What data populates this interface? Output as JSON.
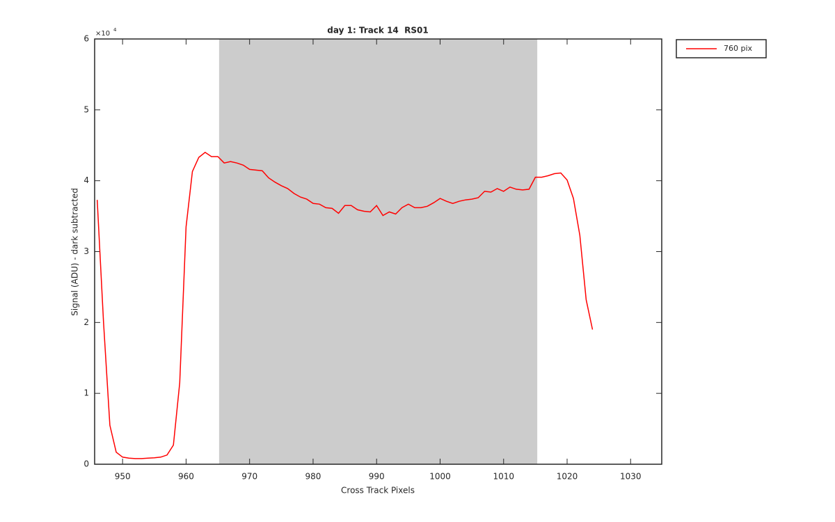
{
  "chart_data": {
    "type": "line",
    "title": "day 1: Track 14  RS01",
    "xlabel": "Cross Track Pixels",
    "ylabel": "Signal (ADU) - dark subtracted",
    "y_exponent_base": "×10",
    "y_exponent": "4",
    "xlim": [
      945.6,
      1034.9
    ],
    "ylim": [
      0,
      60000
    ],
    "xticks": [
      950,
      960,
      970,
      980,
      990,
      1000,
      1010,
      1020,
      1030
    ],
    "yticks": [
      0,
      {
        "value": 10000,
        "label": "1"
      },
      {
        "value": 20000,
        "label": "2"
      },
      {
        "value": 30000,
        "label": "3"
      },
      {
        "value": 40000,
        "label": "4"
      },
      {
        "value": 50000,
        "label": "5"
      },
      {
        "value": 60000,
        "label": "6"
      }
    ],
    "shaded_region": [
      965.2,
      1015.3
    ],
    "shaded_color": "#cccccc",
    "legend": "upper right outside",
    "x": [
      946,
      947,
      948,
      949,
      950,
      951,
      952,
      953,
      954,
      955,
      956,
      957,
      958,
      959,
      960,
      961,
      962,
      963,
      964,
      965,
      966,
      967,
      968,
      969,
      970,
      971,
      972,
      973,
      974,
      975,
      976,
      977,
      978,
      979,
      980,
      981,
      982,
      983,
      984,
      985,
      986,
      987,
      988,
      989,
      990,
      991,
      992,
      993,
      994,
      995,
      996,
      997,
      998,
      999,
      1000,
      1001,
      1002,
      1003,
      1004,
      1005,
      1006,
      1007,
      1008,
      1009,
      1010,
      1011,
      1012,
      1013,
      1014,
      1015,
      1016,
      1017,
      1018,
      1019,
      1020,
      1021,
      1022,
      1023,
      1024
    ],
    "series": [
      {
        "name": "760 pix",
        "color": "#ff0000",
        "values": [
          37300,
          20000,
          5500,
          1700,
          1000,
          850,
          800,
          800,
          850,
          900,
          1000,
          1300,
          2700,
          11500,
          33500,
          41300,
          43300,
          44000,
          43400,
          43400,
          42500,
          42700,
          42500,
          42200,
          41600,
          41500,
          41400,
          40400,
          39800,
          39300,
          38900,
          38200,
          37700,
          37400,
          36800,
          36700,
          36200,
          36100,
          35400,
          36500,
          36500,
          35900,
          35700,
          35600,
          36500,
          35100,
          35600,
          35300,
          36200,
          36700,
          36200,
          36200,
          36400,
          36900,
          37500,
          37100,
          36800,
          37100,
          37300,
          37400,
          37600,
          38500,
          38400,
          38900,
          38500,
          39100,
          38800,
          38700,
          38800,
          40500,
          40500,
          40700,
          41000,
          41100,
          40100,
          37500,
          32300,
          23200,
          19000
        ]
      }
    ]
  }
}
